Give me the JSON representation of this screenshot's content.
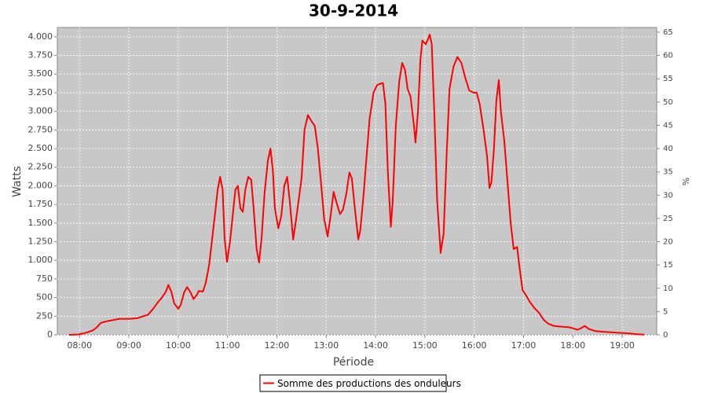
{
  "chart_data": {
    "type": "line",
    "title": "30-9-2014",
    "xlabel": "Période",
    "ylabel": "Watts",
    "y2label": "%",
    "x": [
      7.79,
      7.98,
      8.14,
      8.27,
      8.35,
      8.43,
      8.54,
      8.7,
      8.81,
      9.02,
      9.18,
      9.29,
      9.39,
      9.48,
      9.58,
      9.67,
      9.75,
      9.8,
      9.86,
      9.92,
      10.0,
      10.05,
      10.12,
      10.18,
      10.25,
      10.31,
      10.37,
      10.42,
      10.5,
      10.56,
      10.63,
      10.69,
      10.75,
      10.8,
      10.85,
      10.9,
      10.94,
      10.99,
      11.05,
      11.12,
      11.16,
      11.21,
      11.26,
      11.31,
      11.36,
      11.42,
      11.48,
      11.53,
      11.59,
      11.64,
      11.69,
      11.75,
      11.82,
      11.87,
      11.92,
      11.96,
      12.03,
      12.09,
      12.15,
      12.21,
      12.26,
      12.33,
      12.38,
      12.44,
      12.5,
      12.56,
      12.63,
      12.69,
      12.77,
      12.83,
      12.9,
      12.96,
      13.03,
      13.09,
      13.15,
      13.22,
      13.28,
      13.34,
      13.41,
      13.47,
      13.52,
      13.58,
      13.65,
      13.69,
      13.76,
      13.82,
      13.88,
      13.96,
      14.03,
      14.09,
      14.15,
      14.2,
      14.25,
      14.31,
      14.35,
      14.41,
      14.48,
      14.54,
      14.6,
      14.65,
      14.71,
      14.78,
      14.81,
      14.86,
      14.91,
      14.95,
      15.02,
      15.05,
      15.1,
      15.14,
      15.19,
      15.25,
      15.32,
      15.38,
      15.44,
      15.5,
      15.58,
      15.66,
      15.74,
      15.82,
      15.9,
      15.99,
      16.05,
      16.11,
      16.19,
      16.26,
      16.31,
      16.35,
      16.4,
      16.45,
      16.5,
      16.54,
      16.61,
      16.67,
      16.74,
      16.8,
      16.87,
      16.92,
      16.98,
      17.06,
      17.14,
      17.22,
      17.31,
      17.41,
      17.5,
      17.61,
      17.77,
      17.94,
      18.09,
      18.17,
      18.24,
      18.32,
      18.46,
      18.65,
      18.89,
      19.13,
      19.29,
      19.45
    ],
    "series": [
      {
        "name": "Somme des productions des onduleurs",
        "color": "#ff0000",
        "values": [
          0,
          5,
          30,
          60,
          100,
          160,
          180,
          200,
          215,
          215,
          225,
          250,
          270,
          340,
          430,
          500,
          580,
          670,
          580,
          420,
          350,
          400,
          570,
          640,
          570,
          480,
          530,
          590,
          580,
          700,
          950,
          1300,
          1650,
          1950,
          2120,
          1950,
          1300,
          980,
          1250,
          1700,
          1950,
          2000,
          1700,
          1650,
          1950,
          2120,
          2080,
          1700,
          1150,
          970,
          1300,
          1900,
          2350,
          2500,
          2200,
          1700,
          1430,
          1600,
          2000,
          2120,
          1800,
          1280,
          1500,
          1800,
          2100,
          2750,
          2950,
          2880,
          2800,
          2500,
          2000,
          1550,
          1320,
          1600,
          1920,
          1750,
          1620,
          1680,
          1900,
          2180,
          2100,
          1700,
          1280,
          1400,
          1900,
          2400,
          2900,
          3250,
          3350,
          3370,
          3380,
          3100,
          2200,
          1450,
          1800,
          2800,
          3400,
          3650,
          3550,
          3300,
          3200,
          2800,
          2580,
          3000,
          3700,
          3950,
          3900,
          3950,
          4030,
          3900,
          3000,
          1800,
          1100,
          1350,
          2400,
          3300,
          3600,
          3730,
          3650,
          3450,
          3280,
          3250,
          3250,
          3100,
          2750,
          2400,
          1970,
          2050,
          2500,
          3150,
          3420,
          3000,
          2600,
          2100,
          1500,
          1150,
          1180,
          900,
          600,
          520,
          430,
          360,
          300,
          200,
          150,
          120,
          110,
          100,
          70,
          90,
          120,
          80,
          50,
          40,
          30,
          20,
          10,
          2
        ]
      }
    ],
    "xlim": [
      7.55,
      19.7
    ],
    "xticks": [
      {
        "value": 8,
        "label": "08:00"
      },
      {
        "value": 9,
        "label": "09:00"
      },
      {
        "value": 10,
        "label": "10:00"
      },
      {
        "value": 11,
        "label": "11:00"
      },
      {
        "value": 12,
        "label": "12:00"
      },
      {
        "value": 13,
        "label": "13:00"
      },
      {
        "value": 14,
        "label": "14:00"
      },
      {
        "value": 15,
        "label": "15:00"
      },
      {
        "value": 16,
        "label": "16:00"
      },
      {
        "value": 17,
        "label": "17:00"
      },
      {
        "value": 18,
        "label": "18:00"
      },
      {
        "value": 19,
        "label": "19:00"
      }
    ],
    "ylim": [
      0,
      4125
    ],
    "yticks": [
      0,
      250,
      500,
      750,
      {
        "value": 1000,
        "label": "1.000"
      },
      {
        "value": 1250,
        "label": "1.250"
      },
      {
        "value": 1500,
        "label": "1.500"
      },
      {
        "value": 1750,
        "label": "1.750"
      },
      {
        "value": 2000,
        "label": "2.000"
      },
      {
        "value": 2250,
        "label": "2.250"
      },
      {
        "value": 2500,
        "label": "2.500"
      },
      {
        "value": 2750,
        "label": "2.750"
      },
      {
        "value": 3000,
        "label": "3.000"
      },
      {
        "value": 3250,
        "label": "3.250"
      },
      {
        "value": 3500,
        "label": "3.500"
      },
      {
        "value": 3750,
        "label": "3.750"
      },
      {
        "value": 4000,
        "label": "4.000"
      }
    ],
    "y2lim": [
      0,
      66
    ],
    "y2ticks": [
      0,
      5,
      10,
      15,
      20,
      25,
      30,
      35,
      40,
      45,
      50,
      55,
      60,
      65
    ],
    "grid": true,
    "legend": "bottom"
  }
}
